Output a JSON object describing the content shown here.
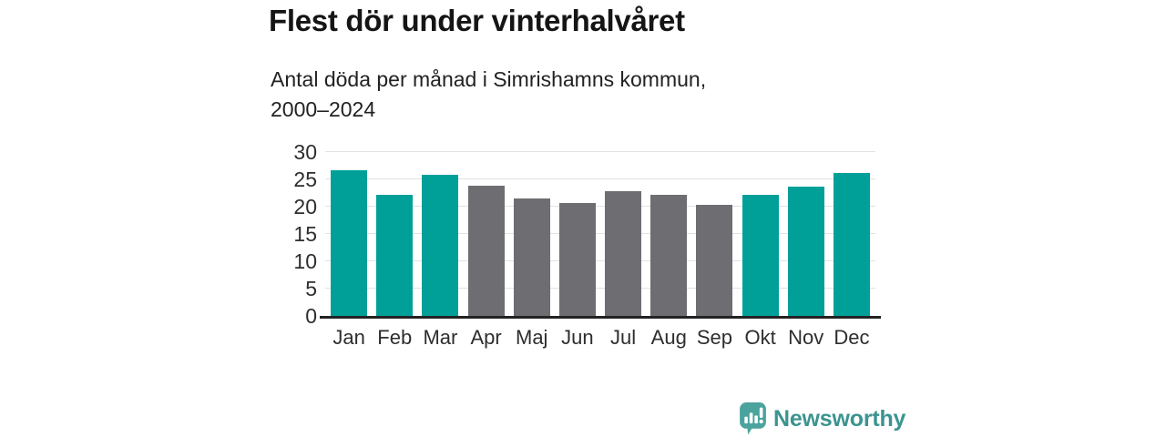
{
  "header": {
    "title": "Flest dör under vinterhalvåret",
    "subtitle_line1": "Antal döda per månad i Simrishamns kommun,",
    "subtitle_line2": "2000–2024"
  },
  "chart_data": {
    "type": "bar",
    "title": "Flest dör under vinterhalvåret",
    "subtitle": "Antal döda per månad i Simrishamns kommun, 2000–2024",
    "categories": [
      "Jan",
      "Feb",
      "Mar",
      "Apr",
      "Maj",
      "Jun",
      "Jul",
      "Aug",
      "Sep",
      "Okt",
      "Nov",
      "Dec"
    ],
    "values": [
      26.7,
      22.1,
      25.8,
      23.9,
      21.5,
      20.7,
      22.9,
      22.1,
      20.4,
      22.2,
      23.7,
      26.1
    ],
    "bar_groups": [
      "winter",
      "winter",
      "winter",
      "summer",
      "summer",
      "summer",
      "summer",
      "summer",
      "summer",
      "winter",
      "winter",
      "winter"
    ],
    "palette": {
      "winter": "#00a099",
      "summer": "#6e6e72"
    },
    "xlabel": "",
    "ylabel": "",
    "ylim": [
      0,
      30
    ],
    "yticks": [
      0,
      5,
      10,
      15,
      20,
      25,
      30
    ],
    "grid": true,
    "gridline_color": "#e2e2e5",
    "axis_color": "#232323",
    "legend": "none"
  },
  "footer": {
    "brand": "Newsworthy",
    "brand_color": "#3b948f",
    "icon_color": "#4ba39e",
    "logo_icon": "bar-chart-speech-bubble-icon"
  }
}
